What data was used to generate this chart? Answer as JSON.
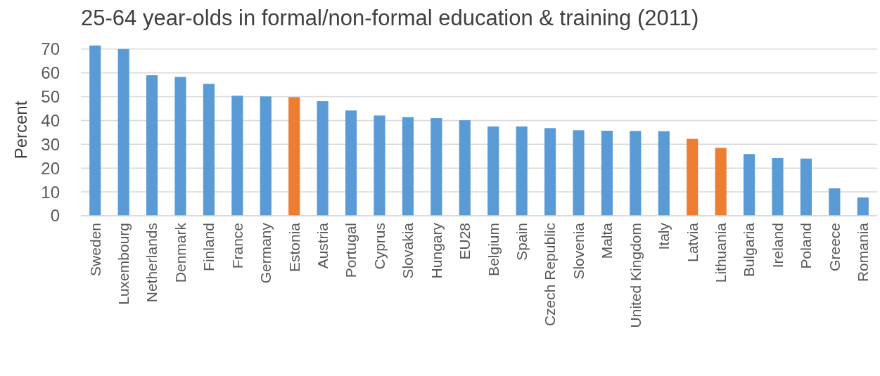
{
  "chart_data": {
    "type": "bar",
    "title": "25-64 year-olds in formal/non-formal education & training (2011)",
    "ylabel": "Percent",
    "categories": [
      "Sweden",
      "Luxembourg",
      "Netherlands",
      "Denmark",
      "Finland",
      "France",
      "Germany",
      "Estonia",
      "Austria",
      "Portugal",
      "Cyprus",
      "Slovakia",
      "Hungary",
      "EU28",
      "Belgium",
      "Spain",
      "Czech Republic",
      "Slovenia",
      "Malta",
      "United Kingdom",
      "Italy",
      "Latvia",
      "Lithuania",
      "Bulgaria",
      "Ireland",
      "Poland",
      "Greece",
      "Romania"
    ],
    "values": [
      71.5,
      70.0,
      59.0,
      58.3,
      55.4,
      50.4,
      50.1,
      49.8,
      48.1,
      44.2,
      42.1,
      41.4,
      41.0,
      40.1,
      37.5,
      37.5,
      36.8,
      35.9,
      35.7,
      35.6,
      35.5,
      32.3,
      28.5,
      25.9,
      24.2,
      24.0,
      11.5,
      7.7
    ],
    "colors": [
      "#5b9bd5",
      "#5b9bd5",
      "#5b9bd5",
      "#5b9bd5",
      "#5b9bd5",
      "#5b9bd5",
      "#5b9bd5",
      "#ed7d31",
      "#5b9bd5",
      "#5b9bd5",
      "#5b9bd5",
      "#5b9bd5",
      "#5b9bd5",
      "#5b9bd5",
      "#5b9bd5",
      "#5b9bd5",
      "#5b9bd5",
      "#5b9bd5",
      "#5b9bd5",
      "#5b9bd5",
      "#5b9bd5",
      "#ed7d31",
      "#ed7d31",
      "#5b9bd5",
      "#5b9bd5",
      "#5b9bd5",
      "#5b9bd5",
      "#5b9bd5"
    ],
    "ylim": [
      0,
      72
    ],
    "yticks": [
      0,
      10,
      20,
      30,
      40,
      50,
      60,
      70
    ],
    "grid": "y"
  }
}
